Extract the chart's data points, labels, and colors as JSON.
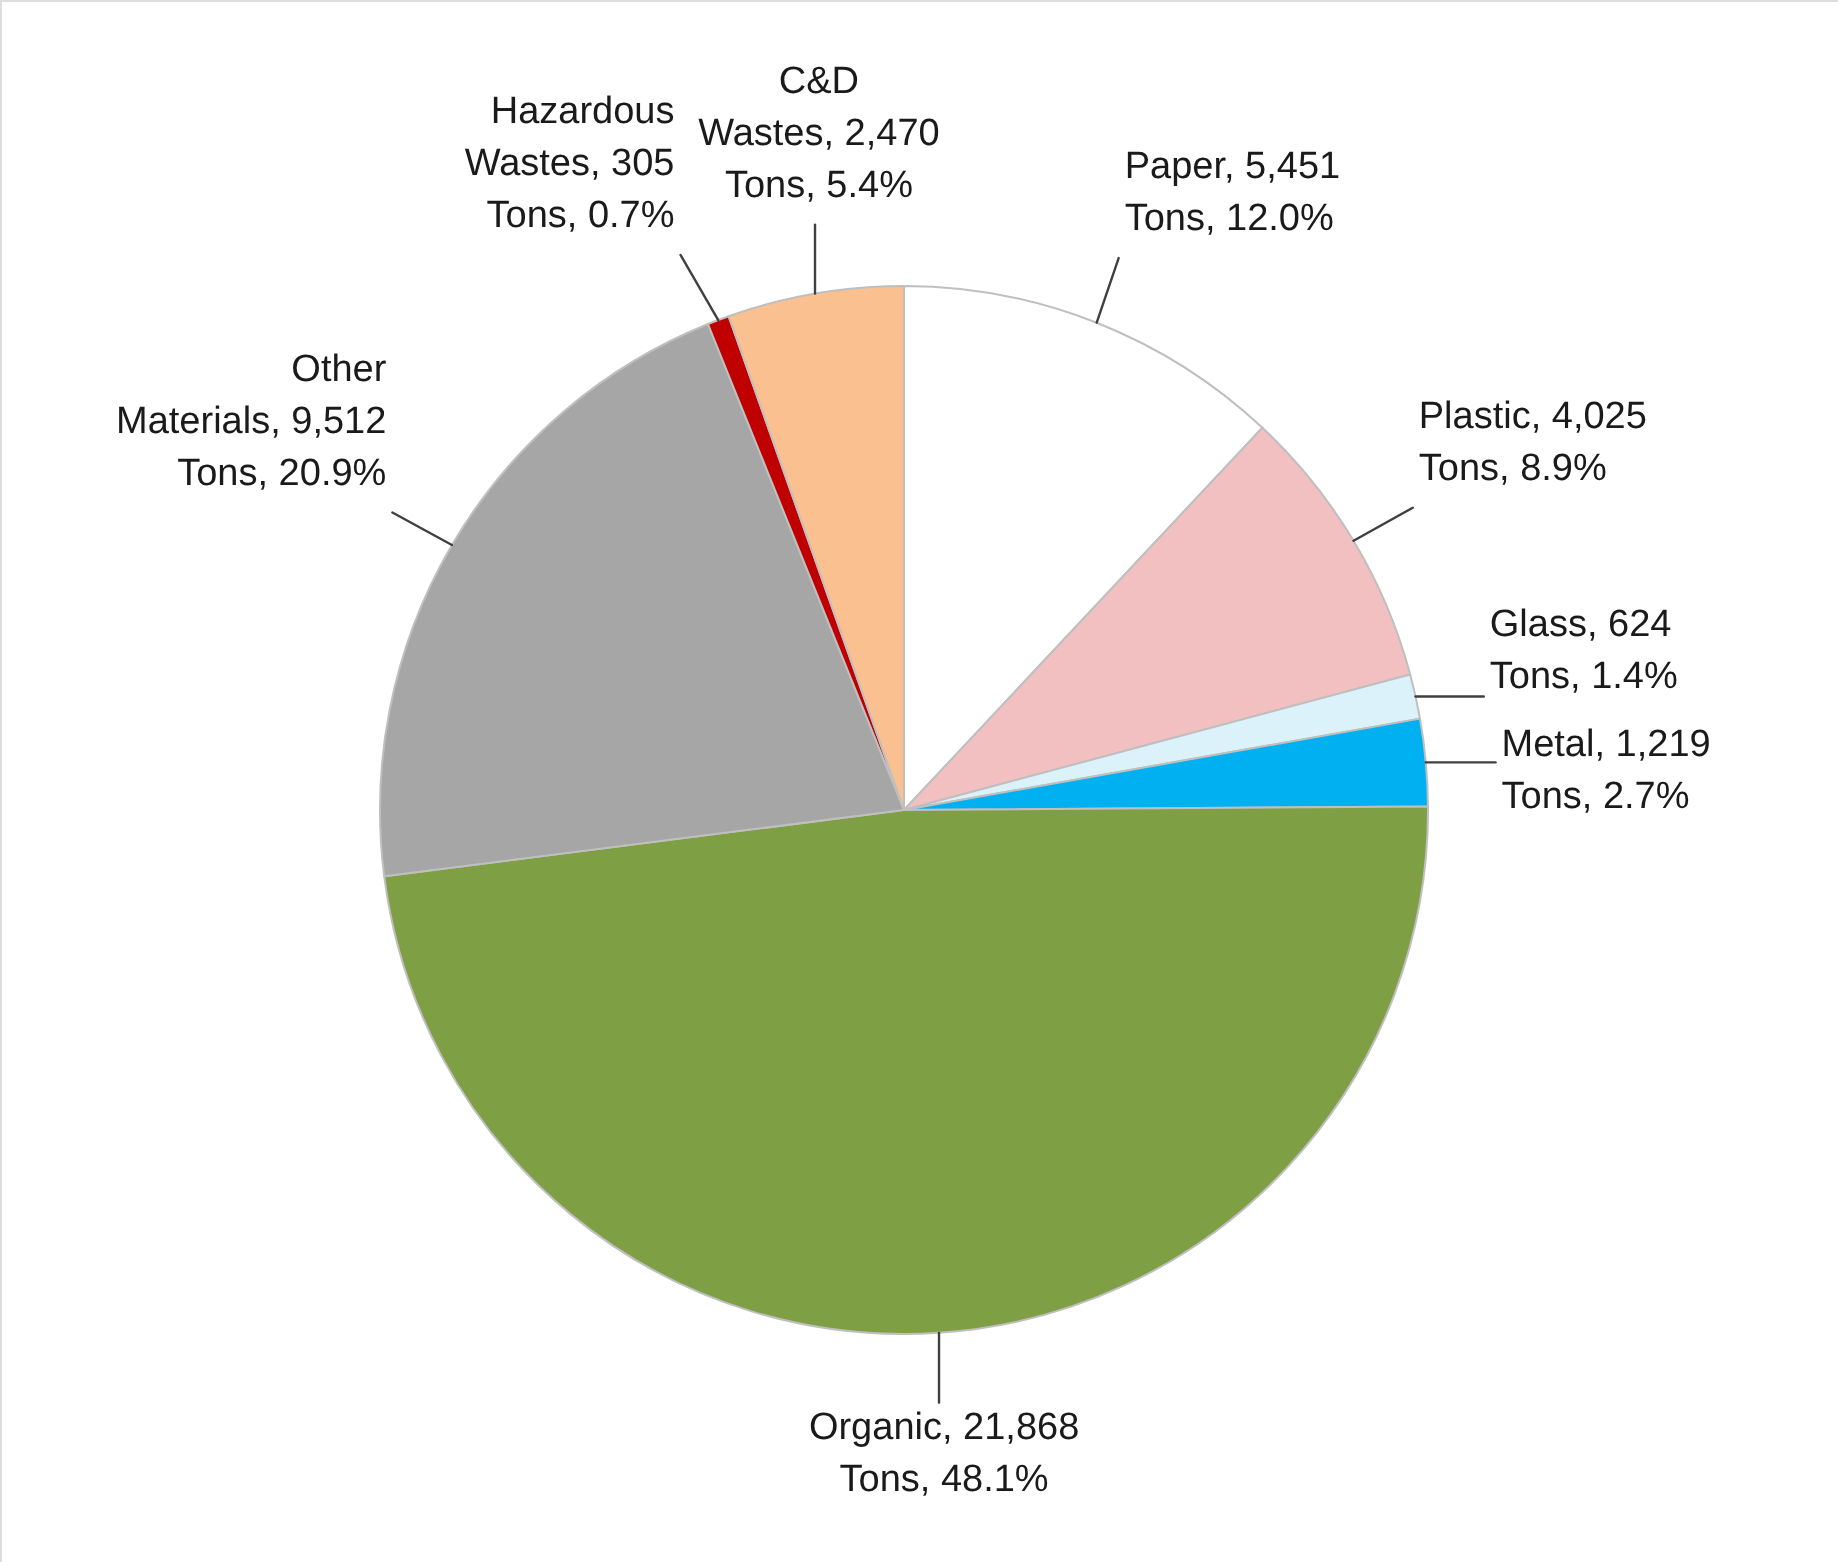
{
  "chart_data": {
    "type": "pie",
    "categories": [
      "Paper",
      "Plastic",
      "Glass",
      "Metal",
      "Organic",
      "Other Materials",
      "Hazardous Wastes",
      "C&D Wastes"
    ],
    "values": [
      5451,
      4025,
      624,
      1219,
      21868,
      9512,
      305,
      2470
    ],
    "colors": [
      "#ffffff",
      "#f2c0c0",
      "#dcf2fa",
      "#00b0f0",
      "#7f9f45",
      "#a6a6a6",
      "#c00000",
      "#fac090"
    ],
    "value_labels": [
      "5,451 Tons, 12.0%",
      "4,025 Tons, 8.9%",
      "624 Tons, 1.4%",
      "1,219 Tons, 2.7%",
      "21,868 Tons, 48.1%",
      "9,512 Tons, 20.9%",
      "305 Tons, 0.7%",
      "2,470 Tons, 5.4%"
    ]
  }
}
